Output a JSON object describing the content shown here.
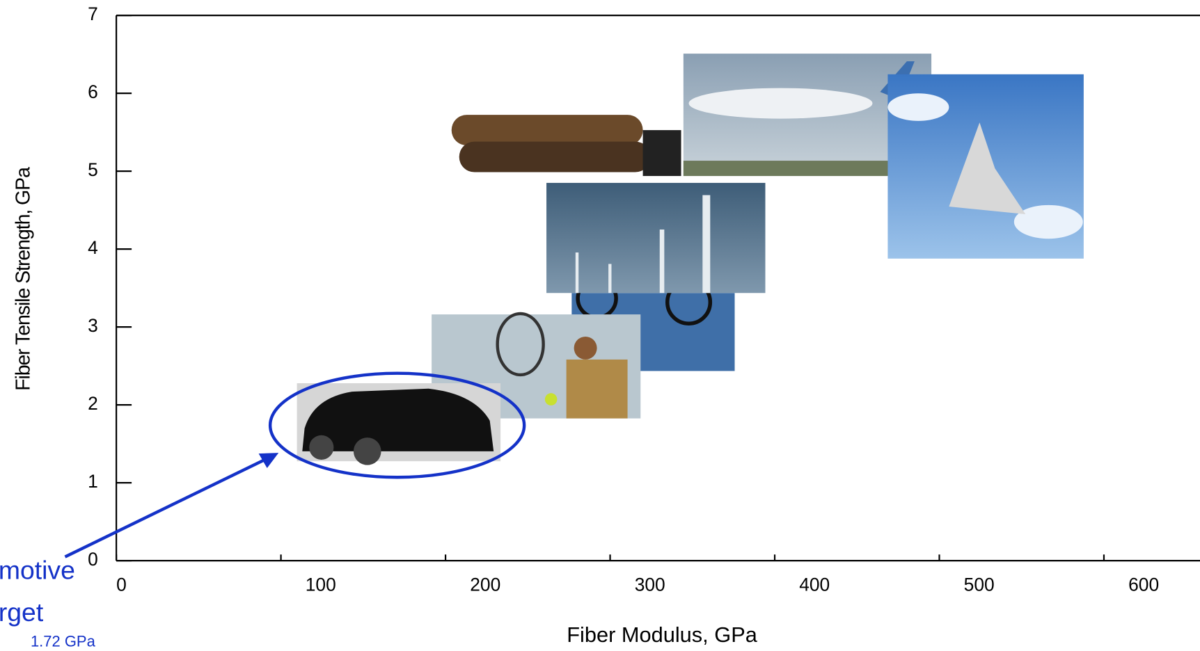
{
  "chart_data": {
    "type": "scatter",
    "x_label": "Fiber Modulus, GPa",
    "y_label": "Fiber Tensile Strength, GPa",
    "xlim": [
      0,
      650
    ],
    "xticks": [
      0,
      100,
      200,
      300,
      400,
      500,
      600
    ],
    "ylim": [
      0,
      7
    ],
    "yticks": [
      0,
      1,
      2,
      3,
      4,
      5,
      6,
      7
    ],
    "annotations": [
      "motive",
      "rget",
      "1.72 GPa"
    ]
  }
}
